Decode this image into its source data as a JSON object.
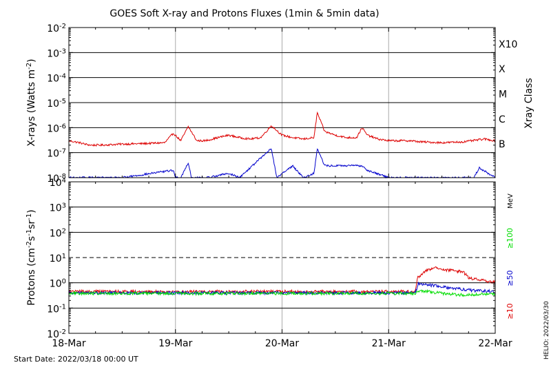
{
  "chart_data": [
    {
      "type": "line",
      "title": "GOES Soft X-ray and Protons Fluxes   (1min & 5min data)",
      "ylabel_main": "X-rays (Watts m",
      "ylabel_sup": "-2",
      "ylabel_close": ")",
      "yscale": "log",
      "ylim": [
        1e-08,
        0.01
      ],
      "y_ticks": [
        {
          "base": "10",
          "exp": "-2"
        },
        {
          "base": "10",
          "exp": "-3"
        },
        {
          "base": "10",
          "exp": "-4"
        },
        {
          "base": "10",
          "exp": "-5"
        },
        {
          "base": "10",
          "exp": "-6"
        },
        {
          "base": "10",
          "exp": "-7"
        },
        {
          "base": "10",
          "exp": "-8"
        }
      ],
      "right_axis_title": "Xray Class",
      "class_labels": [
        "X10",
        "X",
        "M",
        "C",
        "B"
      ],
      "x_ticks": [
        "18-Mar",
        "19-Mar",
        "20-Mar",
        "21-Mar",
        "22-Mar"
      ],
      "xlim_days": [
        0,
        4
      ],
      "grid": "vertical at day boundaries, horizontal at each decade",
      "series": [
        {
          "color": "#dd0000",
          "x_days": [
            0,
            0.1,
            0.15,
            0.2,
            0.3,
            0.5,
            0.7,
            0.9,
            0.98,
            1.05,
            1.12,
            1.2,
            1.28,
            1.4,
            1.5,
            1.6,
            1.7,
            1.8,
            1.9,
            2.0,
            2.1,
            2.2,
            2.3,
            2.33,
            2.4,
            2.5,
            2.6,
            2.7,
            2.75,
            2.8,
            2.9,
            3.0,
            3.1,
            3.2,
            3.3,
            3.5,
            3.7,
            3.9,
            4.0
          ],
          "values": [
            3e-07,
            2.5e-07,
            2.2e-07,
            2e-07,
            2e-07,
            2.2e-07,
            2.3e-07,
            2.5e-07,
            6e-07,
            3e-07,
            1.1e-06,
            3e-07,
            3e-07,
            4e-07,
            5e-07,
            4e-07,
            3.5e-07,
            4e-07,
            1.2e-06,
            5e-07,
            4e-07,
            3.5e-07,
            4e-07,
            4e-06,
            7e-07,
            5e-07,
            4e-07,
            4e-07,
            1e-06,
            5e-07,
            3.5e-07,
            3e-07,
            3e-07,
            3e-07,
            2.7e-07,
            2.5e-07,
            2.7e-07,
            3.5e-07,
            3e-07
          ]
        },
        {
          "color": "#0000cc",
          "x_days": [
            0,
            0.5,
            0.98,
            1.0,
            1.05,
            1.12,
            1.15,
            1.3,
            1.5,
            1.6,
            1.9,
            1.95,
            2.1,
            2.2,
            2.3,
            2.33,
            2.4,
            2.6,
            2.75,
            2.8,
            3.0,
            3.5,
            3.8,
            3.85,
            4.0
          ],
          "values": [
            1e-08,
            1e-08,
            2e-08,
            1e-08,
            1e-08,
            4e-08,
            1e-08,
            1e-08,
            1.5e-08,
            1e-08,
            1.5e-07,
            1e-08,
            3e-08,
            1e-08,
            1.5e-08,
            1.5e-07,
            3e-08,
            3e-08,
            3e-08,
            2e-08,
            1e-08,
            1e-08,
            1e-08,
            2.5e-08,
            1e-08
          ]
        }
      ]
    },
    {
      "type": "line",
      "ylabel_main": "Protons (cm",
      "ylabel_sup1": "-2",
      "ylabel_mid": "s",
      "ylabel_sup2": "-1",
      "ylabel_mid2": "sr",
      "ylabel_sup3": "-1",
      "ylabel_close": ")",
      "yscale": "log",
      "ylim": [
        0.01,
        10000
      ],
      "y_ticks": [
        {
          "base": "10",
          "exp": "4"
        },
        {
          "base": "10",
          "exp": "3"
        },
        {
          "base": "10",
          "exp": "2"
        },
        {
          "base": "10",
          "exp": "1"
        },
        {
          "base": "10",
          "exp": "0"
        },
        {
          "base": "10",
          "exp": "-1"
        },
        {
          "base": "10",
          "exp": "-2"
        }
      ],
      "threshold_value": 10,
      "right_axis_unit": "MeV",
      "energy_labels": [
        {
          "text": "≥100",
          "color": "#00dd00"
        },
        {
          "text": "≥50",
          "color": "#0000cc"
        },
        {
          "text": "≥10",
          "color": "#dd0000"
        }
      ],
      "x_ticks": [
        "18-Mar",
        "19-Mar",
        "20-Mar",
        "21-Mar",
        "22-Mar"
      ],
      "xlim_days": [
        0,
        4
      ],
      "series": [
        {
          "name": "≥10",
          "color": "#dd0000",
          "x_days": [
            0,
            1.0,
            2.0,
            3.0,
            3.25,
            3.27,
            3.35,
            3.45,
            3.55,
            3.7,
            3.75,
            3.8,
            3.9,
            4.0
          ],
          "values": [
            0.45,
            0.45,
            0.45,
            0.45,
            0.45,
            1.6,
            3.0,
            4.2,
            3.2,
            2.7,
            1.6,
            1.4,
            1.2,
            1.05
          ]
        },
        {
          "name": "≥50",
          "color": "#0000cc",
          "x_days": [
            0,
            1.0,
            2.0,
            3.0,
            3.25,
            3.28,
            3.4,
            3.6,
            3.8,
            4.0
          ],
          "values": [
            0.4,
            0.4,
            0.4,
            0.4,
            0.4,
            0.95,
            0.8,
            0.6,
            0.5,
            0.45
          ]
        },
        {
          "name": "≥100",
          "color": "#00dd00",
          "x_days": [
            0,
            1.0,
            2.0,
            3.0,
            3.25,
            3.28,
            3.5,
            3.7,
            4.0
          ],
          "values": [
            0.38,
            0.38,
            0.38,
            0.38,
            0.38,
            0.5,
            0.38,
            0.33,
            0.38
          ]
        }
      ]
    }
  ],
  "footer": {
    "start_date": "Start Date: 2022/03/18 00:00 UT",
    "helio": "HELIO: 2022/03/30"
  }
}
